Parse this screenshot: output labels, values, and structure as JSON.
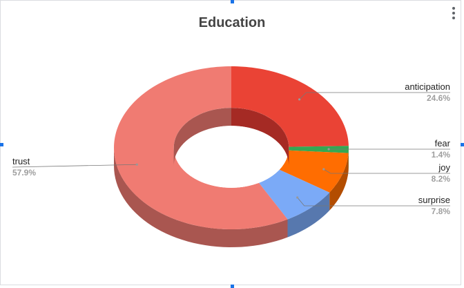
{
  "chart_data": {
    "type": "pie",
    "donut": true,
    "three_d": true,
    "title": "Education",
    "slices": [
      {
        "label": "anticipation",
        "value": 24.6,
        "percent": "24.6%",
        "color": "#ea4335",
        "side_color": "#a52a24"
      },
      {
        "label": "fear",
        "value": 1.4,
        "percent": "1.4%",
        "color": "#34a853",
        "side_color": "#24773a"
      },
      {
        "label": "joy",
        "value": 8.2,
        "percent": "8.2%",
        "color": "#ff6d01",
        "side_color": "#b34d00"
      },
      {
        "label": "surprise",
        "value": 7.8,
        "percent": "7.8%",
        "color": "#7baaf7",
        "side_color": "#5778ae"
      },
      {
        "label": "trust",
        "value": 57.9,
        "percent": "57.9%",
        "color": "#f07b72",
        "side_color": "#a95650"
      }
    ],
    "legend": "labeled"
  },
  "ui": {
    "menu_icon": "more-vert-icon",
    "accent_color": "#1a73e8"
  }
}
